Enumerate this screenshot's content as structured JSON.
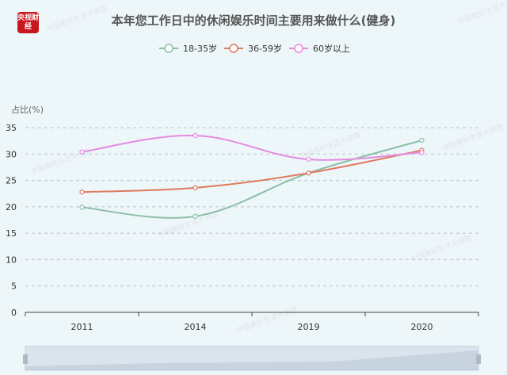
{
  "brand": {
    "logo_text": "央视财经",
    "watermark": "中国美好生活大调查"
  },
  "chart_data": {
    "type": "line",
    "title": "本年您工作日中的休闲娱乐时间主要用来做什么(健身)",
    "ylabel": "占比(%)",
    "xlabel": "",
    "categories": [
      "2011",
      "2014",
      "2019",
      "2020"
    ],
    "ylim": [
      0,
      35
    ],
    "yticks": [
      0,
      5,
      10,
      15,
      20,
      25,
      30,
      35
    ],
    "grid": true,
    "legend_position": "top-center",
    "series": [
      {
        "name": "18-35岁",
        "color": "#8cbfa8",
        "values": [
          19.9,
          18.2,
          26.4,
          32.6
        ]
      },
      {
        "name": "36-59岁",
        "color": "#e07a5f",
        "values": [
          22.8,
          23.6,
          26.4,
          30.7
        ]
      },
      {
        "name": "60岁以上",
        "color": "#e58ae0",
        "values": [
          30.4,
          33.5,
          29.0,
          30.3
        ]
      }
    ]
  }
}
